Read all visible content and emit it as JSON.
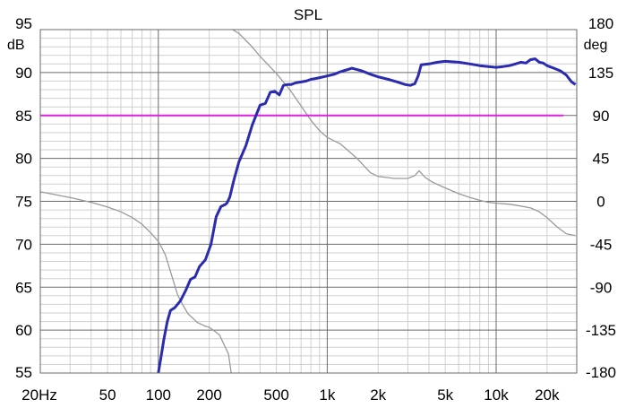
{
  "chart_data": {
    "type": "line",
    "title": "SPL",
    "x_scale": "log",
    "xlim": [
      20,
      30000
    ],
    "x_ticks": [
      "20Hz",
      "50",
      "100",
      "200",
      "500",
      "1k",
      "2k",
      "5k",
      "10k",
      "20k"
    ],
    "x_tick_values": [
      20,
      50,
      100,
      200,
      500,
      1000,
      2000,
      5000,
      10000,
      20000
    ],
    "y_left_unit": "dB",
    "y_left_lim": [
      55,
      95
    ],
    "y_left_ticks": [
      95,
      90,
      85,
      80,
      75,
      70,
      65,
      60,
      55
    ],
    "y_right_unit": "deg",
    "y_right_lim": [
      -180,
      180
    ],
    "y_right_ticks": [
      180,
      135,
      90,
      45,
      0,
      -45,
      -90,
      -135,
      -180
    ],
    "grid": true,
    "colors": {
      "spl": "#2b2bb0",
      "phase": "#9a9a9a",
      "reference": "#e020e0",
      "grid_major": "#6a6a6a",
      "grid_minor": "#cfcfcf"
    },
    "series": [
      {
        "axis": "left",
        "x": [
          100,
          104,
          108,
          113,
          118,
          125,
          135,
          145,
          155,
          165,
          175,
          190,
          205,
          220,
          235,
          248,
          255,
          265,
          280,
          300,
          330,
          360,
          400,
          430,
          460,
          490,
          520,
          550,
          580,
          610,
          650,
          700,
          750,
          800,
          850,
          900,
          950,
          1000,
          1100,
          1200,
          1300,
          1400,
          1600,
          1800,
          2000,
          2300,
          2600,
          2900,
          3100,
          3300,
          3450,
          3600,
          4000,
          4500,
          5000,
          6000,
          7000,
          8000,
          9000,
          10000,
          11000,
          12000,
          13000,
          14000,
          15000,
          16000,
          17000,
          18000,
          19000,
          20000,
          22000,
          24000,
          26000,
          28000,
          29500
        ],
        "values": [
          55.0,
          57.0,
          59.0,
          61.0,
          62.3,
          62.6,
          63.4,
          64.6,
          65.9,
          66.2,
          67.4,
          68.2,
          70.0,
          73.2,
          74.4,
          74.6,
          74.8,
          75.5,
          77.5,
          79.6,
          81.5,
          83.9,
          86.2,
          86.4,
          87.7,
          87.8,
          87.4,
          88.5,
          88.6,
          88.6,
          88.8,
          88.9,
          89.0,
          89.2,
          89.3,
          89.4,
          89.5,
          89.6,
          89.8,
          90.1,
          90.3,
          90.5,
          90.2,
          89.8,
          89.5,
          89.2,
          88.9,
          88.6,
          88.5,
          88.7,
          89.6,
          90.9,
          91.0,
          91.2,
          91.3,
          91.2,
          91.0,
          90.8,
          90.7,
          90.6,
          90.7,
          90.8,
          91.0,
          91.2,
          91.1,
          91.5,
          91.6,
          91.2,
          91.1,
          90.8,
          90.5,
          90.2,
          89.7,
          88.9,
          88.6
        ]
      },
      {
        "axis": "right",
        "x": [
          20,
          30,
          40,
          50,
          60,
          70,
          80,
          90,
          100,
          105,
          110,
          120,
          130,
          140,
          150,
          170,
          190,
          200,
          230,
          260,
          270,
          275,
          300,
          350,
          400,
          500,
          600,
          700,
          800,
          900,
          1000,
          1200,
          1500,
          1800,
          2000,
          2500,
          3000,
          3300,
          3500,
          3800,
          4200,
          5000,
          6000,
          7000,
          8000,
          9000,
          10000,
          12000,
          14000,
          16000,
          18000,
          20000,
          23000,
          26000,
          29500
        ],
        "values": [
          10,
          4,
          -1,
          -6,
          -11,
          -17,
          -24,
          -33,
          -42,
          -49,
          -56,
          -78,
          -98,
          -109,
          -118,
          -127,
          -131,
          -132,
          -140,
          -160,
          -180,
          180,
          176,
          164,
          152,
          134,
          117,
          100,
          85,
          74,
          67,
          60,
          45,
          30,
          26,
          24,
          24,
          27,
          32,
          25,
          20,
          14,
          8,
          4,
          1,
          -1,
          -2,
          -3,
          -5,
          -7,
          -11,
          -17,
          -27,
          -34,
          -36
        ]
      },
      {
        "axis": "left",
        "x": [
          20,
          25000
        ],
        "values": [
          85,
          85
        ]
      }
    ]
  }
}
